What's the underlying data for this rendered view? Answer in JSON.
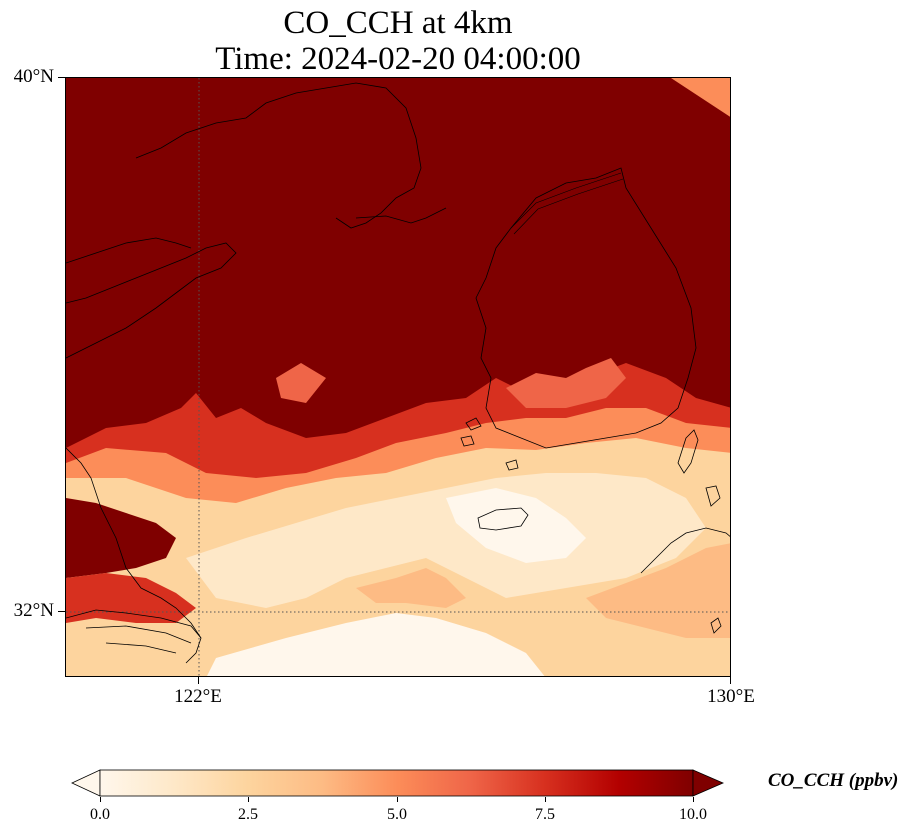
{
  "title": {
    "line1": "CO_CCH at 4km",
    "line2": "Time: 2024-02-20 04:00:00"
  },
  "axes": {
    "lat_labels": [
      "40°N",
      "32°N"
    ],
    "lon_labels": [
      "122°E",
      "130°E"
    ],
    "gridlines": "dotted",
    "extent": {
      "lon_min": 120,
      "lon_max": 130,
      "lat_min": 31,
      "lat_max": 40
    }
  },
  "colorbar": {
    "label": "CO_CCH (ppbv)",
    "ticks": [
      "0.0",
      "2.5",
      "5.0",
      "7.5",
      "10.0"
    ],
    "min": 0,
    "max": 10,
    "extend": "both",
    "colormap": "OrRd",
    "colors": [
      "#fff7ec",
      "#fee8c8",
      "#fdd49e",
      "#fdbb84",
      "#fc8d59",
      "#ef6548",
      "#d7301f",
      "#b30000",
      "#7f0000"
    ]
  },
  "map": {
    "background_color": "#7f0000",
    "coastline_color": "#000000"
  }
}
